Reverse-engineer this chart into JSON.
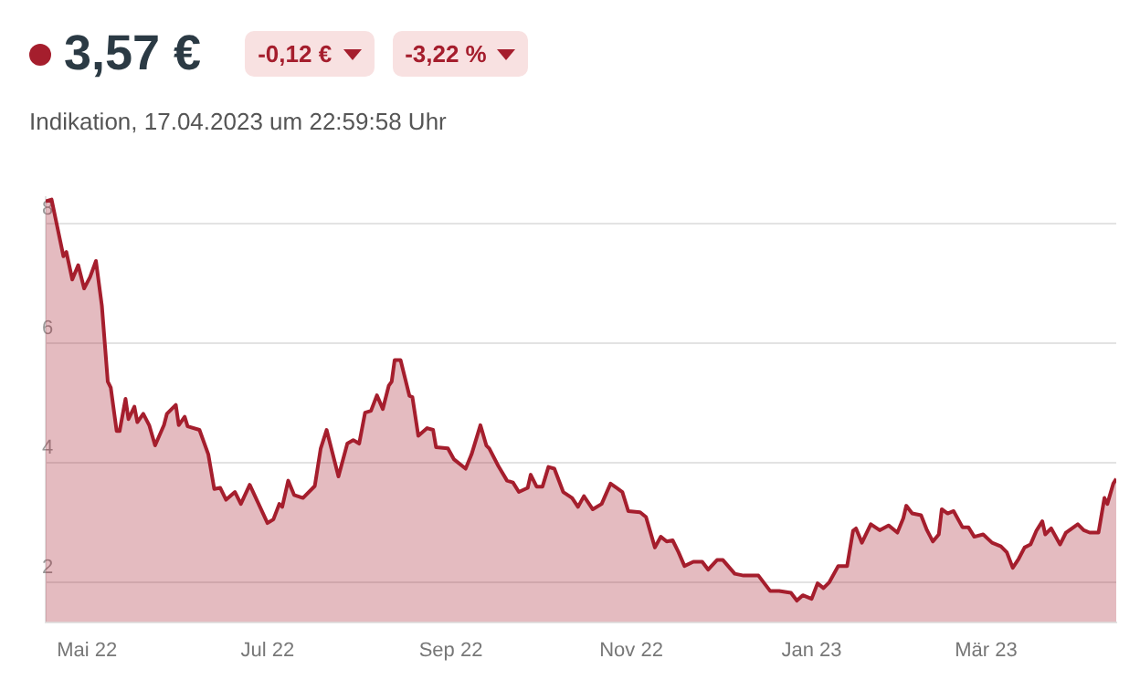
{
  "chart_data": {
    "type": "area",
    "title": "3,57 €",
    "subtitle": "Indikation, 17.04.2023 um 22:59:58 Uhr",
    "annotations": [
      "-0,12 €",
      "-3,22 %"
    ],
    "x": [
      "2022-04-17",
      "2022-04-19",
      "2022-04-23",
      "2022-04-24",
      "2022-04-26",
      "2022-04-28",
      "2022-04-30",
      "2022-05-02",
      "2022-05-04",
      "2022-05-06",
      "2022-05-08",
      "2022-05-09",
      "2022-05-11",
      "2022-05-12",
      "2022-05-14",
      "2022-05-15",
      "2022-05-17",
      "2022-05-18",
      "2022-05-20",
      "2022-05-22",
      "2022-05-24",
      "2022-05-27",
      "2022-05-28",
      "2022-05-31",
      "2022-06-01",
      "2022-06-03",
      "2022-06-04",
      "2022-06-08",
      "2022-06-11",
      "2022-06-13",
      "2022-06-15",
      "2022-06-17",
      "2022-06-20",
      "2022-06-22",
      "2022-06-25",
      "2022-07-01",
      "2022-07-03",
      "2022-07-05",
      "2022-07-06",
      "2022-07-08",
      "2022-07-10",
      "2022-07-13",
      "2022-07-17",
      "2022-07-19",
      "2022-07-21",
      "2022-07-23",
      "2022-07-25",
      "2022-07-28",
      "2022-07-30",
      "2022-08-01",
      "2022-08-03",
      "2022-08-05",
      "2022-08-07",
      "2022-08-09",
      "2022-08-11",
      "2022-08-12",
      "2022-08-13",
      "2022-08-15",
      "2022-08-18",
      "2022-08-19",
      "2022-08-21",
      "2022-08-24",
      "2022-08-26",
      "2022-08-27",
      "2022-08-31",
      "2022-09-02",
      "2022-09-06",
      "2022-09-08",
      "2022-09-11",
      "2022-09-13",
      "2022-09-14",
      "2022-09-17",
      "2022-09-20",
      "2022-09-22",
      "2022-09-24",
      "2022-09-27",
      "2022-09-28",
      "2022-09-30",
      "2022-10-02",
      "2022-10-04",
      "2022-10-06",
      "2022-10-09",
      "2022-10-12",
      "2022-10-14",
      "2022-10-16",
      "2022-10-19",
      "2022-10-22",
      "2022-10-25",
      "2022-10-27",
      "2022-10-29",
      "2022-10-31",
      "2022-11-04",
      "2022-11-06",
      "2022-11-09",
      "2022-11-11",
      "2022-11-13",
      "2022-11-15",
      "2022-11-17",
      "2022-11-19",
      "2022-11-22",
      "2022-11-25",
      "2022-11-27",
      "2022-11-30",
      "2022-12-02",
      "2022-12-06",
      "2022-12-09",
      "2022-12-14",
      "2022-12-18",
      "2022-12-21",
      "2022-12-25",
      "2022-12-27",
      "2022-12-29",
      "2023-01-01",
      "2023-01-03",
      "2023-01-05",
      "2023-01-07",
      "2023-01-10",
      "2023-01-13",
      "2023-01-15",
      "2023-01-16",
      "2023-01-18",
      "2023-01-21",
      "2023-01-24",
      "2023-01-27",
      "2023-01-30",
      "2023-02-01",
      "2023-02-02",
      "2023-02-04",
      "2023-02-07",
      "2023-02-09",
      "2023-02-11",
      "2023-02-13",
      "2023-02-14",
      "2023-02-16",
      "2023-02-18",
      "2023-02-21",
      "2023-02-23",
      "2023-02-25",
      "2023-02-28",
      "2023-03-03",
      "2023-03-06",
      "2023-03-08",
      "2023-03-10",
      "2023-03-12",
      "2023-03-14",
      "2023-03-16",
      "2023-03-18",
      "2023-03-20",
      "2023-03-21",
      "2023-03-23",
      "2023-03-26",
      "2023-03-28",
      "2023-04-01",
      "2023-04-03",
      "2023-04-05",
      "2023-04-08",
      "2023-04-10",
      "2023-04-11",
      "2023-04-13",
      "2023-04-14"
    ],
    "series": [
      {
        "color": "#a51e2d",
        "values": [
          8.38,
          8.41,
          7.46,
          7.53,
          7.07,
          7.31,
          6.92,
          7.11,
          7.38,
          6.63,
          5.36,
          5.26,
          4.53,
          4.53,
          5.07,
          4.73,
          4.94,
          4.68,
          4.82,
          4.63,
          4.29,
          4.63,
          4.82,
          4.97,
          4.63,
          4.77,
          4.61,
          4.55,
          4.14,
          3.56,
          3.58,
          3.38,
          3.51,
          3.31,
          3.63,
          2.99,
          3.05,
          3.31,
          3.26,
          3.7,
          3.46,
          3.41,
          3.61,
          4.24,
          4.55,
          4.16,
          3.77,
          4.32,
          4.38,
          4.32,
          4.84,
          4.87,
          5.13,
          4.9,
          5.29,
          5.36,
          5.72,
          5.72,
          5.12,
          5.1,
          4.45,
          4.58,
          4.55,
          4.26,
          4.24,
          4.06,
          3.9,
          4.14,
          4.63,
          4.29,
          4.24,
          3.95,
          3.7,
          3.67,
          3.51,
          3.58,
          3.8,
          3.6,
          3.6,
          3.93,
          3.9,
          3.51,
          3.41,
          3.26,
          3.44,
          3.22,
          3.31,
          3.65,
          3.58,
          3.51,
          3.19,
          3.17,
          3.09,
          2.58,
          2.76,
          2.68,
          2.7,
          2.5,
          2.27,
          2.34,
          2.34,
          2.21,
          2.37,
          2.37,
          2.14,
          2.11,
          2.11,
          1.85,
          1.85,
          1.82,
          1.69,
          1.78,
          1.72,
          1.98,
          1.9,
          2.0,
          2.27,
          2.27,
          2.86,
          2.9,
          2.66,
          2.97,
          2.87,
          2.95,
          2.83,
          3.07,
          3.28,
          3.15,
          3.12,
          2.87,
          2.68,
          2.8,
          3.22,
          3.15,
          3.19,
          2.92,
          2.92,
          2.76,
          2.8,
          2.66,
          2.6,
          2.5,
          2.24,
          2.39,
          2.58,
          2.63,
          2.86,
          3.02,
          2.8,
          2.9,
          2.63,
          2.83,
          2.97,
          2.87,
          2.83,
          2.83,
          3.41,
          3.31,
          3.65,
          3.73
        ]
      }
    ],
    "xlim": [
      "2022-04-17",
      "2023-04-14"
    ],
    "xticks": [
      {
        "value": "2022-05-01",
        "label": "Mai 22"
      },
      {
        "value": "2022-07-01",
        "label": "Jul 22"
      },
      {
        "value": "2022-09-01",
        "label": "Sep 22"
      },
      {
        "value": "2022-11-01",
        "label": "Nov 22"
      },
      {
        "value": "2023-01-01",
        "label": "Jan 23"
      },
      {
        "value": "2023-03-01",
        "label": "Mär 23"
      }
    ],
    "ylim": [
      1.33,
      8.45
    ],
    "yticks": [
      2,
      4,
      6,
      8
    ],
    "grid": "y"
  }
}
